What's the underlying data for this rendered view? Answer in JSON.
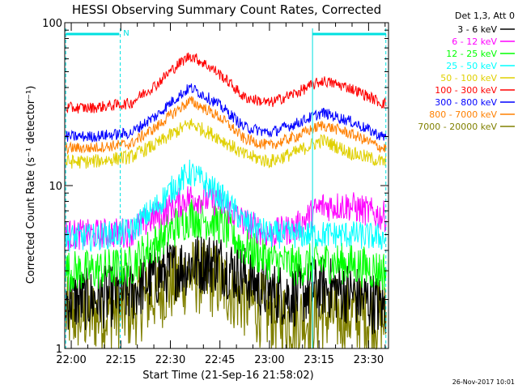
{
  "chart_data": {
    "type": "line",
    "title": "HESSI Observing Summary Count Rates, Corrected",
    "xlabel": "Start Time (21-Sep-16 21:58:02)",
    "ylabel": "Corrected Count Rate (s⁻¹ detector⁻¹)",
    "yscale": "log",
    "ylim": [
      1,
      100
    ],
    "xlim_minutes": [
      0,
      98
    ],
    "x_tick_labels": [
      "22:00",
      "22:15",
      "22:30",
      "22:45",
      "23:00",
      "23:15",
      "23:30"
    ],
    "y_tick_labels": [
      "1",
      "10",
      "100"
    ],
    "legend_title": "Det 1,3, Att 0",
    "legend_position": "right",
    "annotation_n": "N",
    "timestamp": "26-Nov-2017 10:01",
    "series": [
      {
        "name": "3 - 6 keV",
        "color": "#000000",
        "x": [
          8,
          20,
          28,
          38,
          46,
          54,
          62,
          70,
          78,
          86,
          96
        ],
        "y": [
          2.0,
          2.2,
          2.8,
          3.3,
          3.4,
          2.8,
          2.2,
          2.1,
          2.4,
          2.2,
          1.8
        ]
      },
      {
        "name": "6 - 12 keV",
        "color": "#ff00ff",
        "x": [
          8,
          20,
          28,
          38,
          46,
          54,
          62,
          70,
          78,
          86,
          96
        ],
        "y": [
          5.0,
          5.2,
          6.5,
          8.5,
          8.0,
          6.0,
          5.0,
          5.5,
          7.5,
          7.5,
          6.5
        ]
      },
      {
        "name": "12 - 25 keV",
        "color": "#00ff00",
        "x": [
          8,
          20,
          28,
          38,
          46,
          54,
          62,
          70,
          78,
          86,
          96
        ],
        "y": [
          3.0,
          3.2,
          4.5,
          6.5,
          6.0,
          4.2,
          3.5,
          3.2,
          3.4,
          3.3,
          3.0
        ]
      },
      {
        "name": "25 - 50 keV",
        "color": "#00ffff",
        "x": [
          8,
          20,
          28,
          38,
          46,
          54,
          62,
          70,
          78,
          86,
          96
        ],
        "y": [
          4.8,
          5.2,
          7.5,
          12.0,
          9.0,
          6.0,
          5.0,
          5.0,
          5.0,
          5.0,
          4.8
        ]
      },
      {
        "name": "50 - 100 keV",
        "color": "#e0d000",
        "x": [
          8,
          20,
          28,
          38,
          46,
          54,
          62,
          70,
          78,
          86,
          96
        ],
        "y": [
          14.0,
          15.0,
          18.0,
          24.0,
          20.0,
          15.5,
          14.0,
          16.0,
          19.0,
          16.0,
          14.0
        ]
      },
      {
        "name": "100 - 300 keV",
        "color": "#ff0000",
        "x": [
          8,
          20,
          28,
          38,
          46,
          54,
          62,
          70,
          78,
          86,
          96
        ],
        "y": [
          30.0,
          32.0,
          42.0,
          63.0,
          50.0,
          35.0,
          32.0,
          37.0,
          44.0,
          40.0,
          32.0
        ]
      },
      {
        "name": "300 - 800 keV",
        "color": "#0000ff",
        "x": [
          8,
          20,
          28,
          38,
          46,
          54,
          62,
          70,
          78,
          86,
          96
        ],
        "y": [
          20.0,
          21.0,
          27.0,
          40.0,
          32.0,
          23.0,
          21.0,
          24.0,
          28.0,
          25.0,
          20.0
        ]
      },
      {
        "name": "800 - 7000 keV",
        "color": "#ff8000",
        "x": [
          8,
          20,
          28,
          38,
          46,
          54,
          62,
          70,
          78,
          86,
          96
        ],
        "y": [
          17.0,
          18.0,
          23.0,
          33.0,
          27.0,
          19.5,
          17.5,
          20.0,
          23.5,
          21.0,
          17.0
        ]
      },
      {
        "name": "7000 - 20000 keV",
        "color": "#808000",
        "x": [
          8,
          20,
          28,
          38,
          46,
          54,
          62,
          70,
          78,
          86,
          96
        ],
        "y": [
          1.6,
          1.7,
          2.2,
          2.8,
          2.6,
          2.0,
          1.6,
          1.5,
          1.6,
          1.6,
          1.5
        ]
      }
    ]
  }
}
